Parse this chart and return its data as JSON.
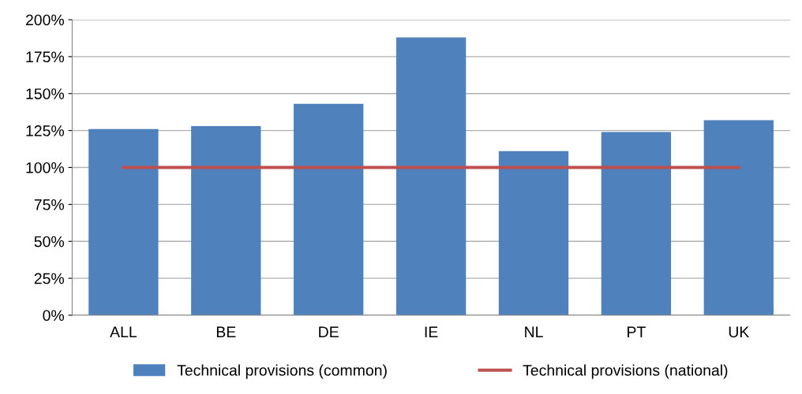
{
  "chart_data": {
    "type": "bar",
    "categories": [
      "ALL",
      "BE",
      "DE",
      "IE",
      "NL",
      "PT",
      "UK"
    ],
    "series": [
      {
        "name": "Technical provisions (common)",
        "color": "#4f81bd",
        "values": [
          126,
          128,
          143,
          188,
          111,
          124,
          132
        ]
      },
      {
        "name": "Technical provisions (national)",
        "type": "line",
        "color": "#c0504d",
        "values": [
          100,
          100,
          100,
          100,
          100,
          100,
          100
        ]
      }
    ],
    "ylim": [
      0,
      200
    ],
    "yticks": [
      {
        "value": 0,
        "label": "0%"
      },
      {
        "value": 25,
        "label": "25%"
      },
      {
        "value": 50,
        "label": "50%"
      },
      {
        "value": 75,
        "label": "75%"
      },
      {
        "value": 100,
        "label": "100%"
      },
      {
        "value": 125,
        "label": "125%"
      },
      {
        "value": 150,
        "label": "150%"
      },
      {
        "value": 175,
        "label": "175%"
      },
      {
        "value": 200,
        "label": "200%"
      }
    ],
    "grid": "y",
    "legend": "bottom"
  }
}
